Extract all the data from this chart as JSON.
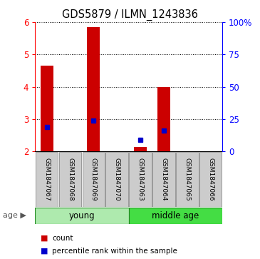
{
  "title": "GDS5879 / ILMN_1243836",
  "samples": [
    "GSM1847067",
    "GSM1847068",
    "GSM1847069",
    "GSM1847070",
    "GSM1847063",
    "GSM1847064",
    "GSM1847065",
    "GSM1847066"
  ],
  "groups": [
    {
      "label": "young",
      "indices": [
        0,
        1,
        2,
        3
      ],
      "color": "#AEEAAE"
    },
    {
      "label": "middle age",
      "indices": [
        4,
        5,
        6,
        7
      ],
      "color": "#44DD44"
    }
  ],
  "red_values": [
    4.65,
    null,
    5.85,
    null,
    2.15,
    4.0,
    null,
    null
  ],
  "blue_values": [
    2.75,
    null,
    2.95,
    null,
    2.35,
    2.65,
    null,
    null
  ],
  "ylim_left": [
    2,
    6
  ],
  "yticks_left": [
    2,
    3,
    4,
    5,
    6
  ],
  "ytick_labels_right": [
    "0",
    "25",
    "50",
    "75",
    "100%"
  ],
  "bar_color": "#CC0000",
  "dot_color": "#0000CC",
  "age_label": "age",
  "legend_count": "count",
  "legend_percentile": "percentile rank within the sample"
}
